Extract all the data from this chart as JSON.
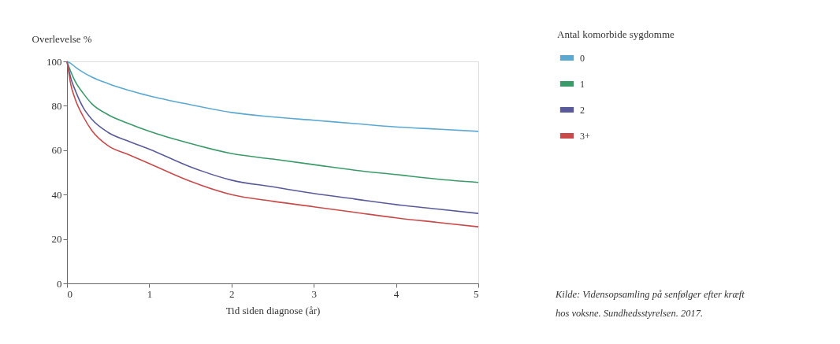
{
  "chart_data": {
    "type": "line",
    "xlabel": "Tid siden diagnose (år)",
    "ylabel": "Overlevelse %",
    "legend_title": "Antal komorbide sygdomme",
    "legend": "top right",
    "grid": false,
    "marker": "none",
    "line_style": "solid",
    "x": [
      0,
      0.05,
      0.1,
      0.2,
      0.3,
      0.5,
      0.75,
      1,
      1.5,
      2,
      2.5,
      3,
      3.5,
      4,
      4.5,
      5
    ],
    "xlim": [
      0,
      5
    ],
    "xticks": [
      0,
      1,
      2,
      3,
      4,
      5
    ],
    "ylim": [
      0,
      100
    ],
    "yticks": [
      0,
      20,
      40,
      60,
      80,
      100
    ],
    "series": [
      {
        "name": "0",
        "color": "#5ba8d0",
        "values": [
          100,
          99,
          97.5,
          95,
          93,
          90,
          87,
          84.5,
          80.5,
          77,
          75,
          73.5,
          72,
          70.5,
          69.5,
          68.5
        ]
      },
      {
        "name": "1",
        "color": "#3a9a6a",
        "values": [
          100,
          95,
          91,
          85.5,
          81,
          76,
          72,
          68.5,
          63,
          58.5,
          56,
          53.5,
          51,
          49,
          47,
          45.5
        ]
      },
      {
        "name": "2",
        "color": "#5a5a9a",
        "values": [
          100,
          92,
          87,
          79,
          74,
          68,
          64,
          60.5,
          52.5,
          46.5,
          43.5,
          40.5,
          38,
          35.5,
          33.5,
          31.5
        ]
      },
      {
        "name": "3+",
        "color": "#c84a4a",
        "values": [
          100,
          89,
          83,
          75,
          69,
          62,
          58,
          54,
          46,
          40,
          37,
          34.5,
          32,
          29.5,
          27.5,
          25.5
        ]
      }
    ],
    "annotations": [
      "Kilde: Vidensopsamling på senfølger efter kræft hos voksne. Sundhedsstyrelsen. 2017."
    ]
  }
}
